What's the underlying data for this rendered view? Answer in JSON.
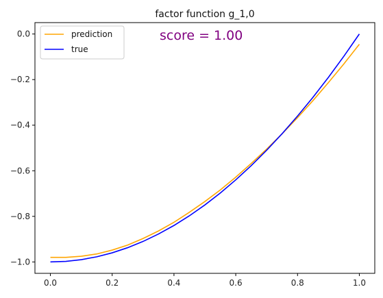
{
  "chart_data": {
    "type": "line",
    "title": "factor function g_1,0",
    "xlabel": "",
    "ylabel": "",
    "xlim": [
      -0.05,
      1.05
    ],
    "ylim": [
      -1.05,
      0.05
    ],
    "xticks": [
      0.0,
      0.2,
      0.4,
      0.6,
      0.8,
      1.0
    ],
    "xtick_labels": [
      "0.0",
      "0.2",
      "0.4",
      "0.6",
      "0.8",
      "1.0"
    ],
    "yticks": [
      0.0,
      -0.2,
      -0.4,
      -0.6,
      -0.8,
      -1.0
    ],
    "ytick_labels": [
      "0.0",
      "−0.2",
      "−0.4",
      "−0.6",
      "−0.8",
      "−1.0"
    ],
    "grid": false,
    "legend": "top-left",
    "annotation": "score =  1.00",
    "annotation_color": "#800080",
    "series": [
      {
        "name": "prediction",
        "color": "#FFA500",
        "x": [
          0.0,
          0.05,
          0.1,
          0.15,
          0.2,
          0.25,
          0.3,
          0.35,
          0.4,
          0.45,
          0.5,
          0.55,
          0.6,
          0.65,
          0.7,
          0.75,
          0.8,
          0.85,
          0.9,
          0.95,
          1.0
        ],
        "y": [
          -0.98,
          -0.98,
          -0.975,
          -0.965,
          -0.948,
          -0.926,
          -0.897,
          -0.864,
          -0.826,
          -0.782,
          -0.735,
          -0.684,
          -0.628,
          -0.568,
          -0.505,
          -0.438,
          -0.367,
          -0.292,
          -0.213,
          -0.131,
          -0.045
        ]
      },
      {
        "name": "true",
        "color": "#0000FF",
        "x": [
          0.0,
          0.05,
          0.1,
          0.15,
          0.2,
          0.25,
          0.3,
          0.35,
          0.4,
          0.45,
          0.5,
          0.55,
          0.6,
          0.65,
          0.7,
          0.75,
          0.8,
          0.85,
          0.9,
          0.95,
          1.0
        ],
        "y": [
          -1.0,
          -0.9975,
          -0.99,
          -0.9775,
          -0.96,
          -0.9375,
          -0.91,
          -0.8775,
          -0.84,
          -0.7975,
          -0.75,
          -0.6975,
          -0.64,
          -0.5775,
          -0.51,
          -0.4375,
          -0.36,
          -0.2775,
          -0.19,
          -0.0975,
          0.0
        ]
      }
    ]
  }
}
